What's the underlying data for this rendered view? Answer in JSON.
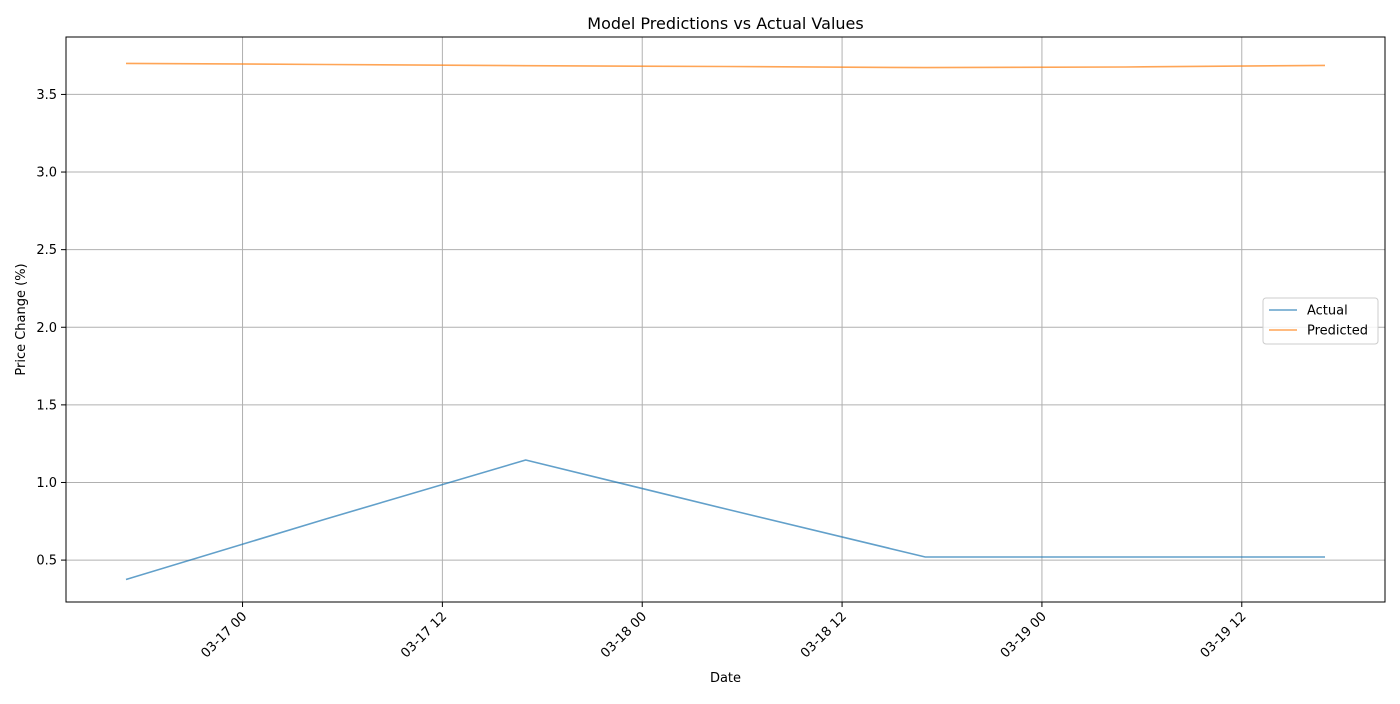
{
  "chart_data": {
    "type": "line",
    "title": "Model Predictions vs Actual Values",
    "xlabel": "Date",
    "ylabel": "Price Change (%)",
    "grid": true,
    "legend_position": "center-right",
    "x": [
      "2026-03-16 17:00",
      "2026-03-17 05:00",
      "2026-03-17 17:00",
      "2026-03-18 05:00",
      "2026-03-18 17:00",
      "2026-03-19 05:00",
      "2026-03-19 17:00"
    ],
    "x_ticks": [
      {
        "value": "2026-03-17 00:00",
        "label": "03-17 00"
      },
      {
        "value": "2026-03-17 12:00",
        "label": "03-17 12"
      },
      {
        "value": "2026-03-18 00:00",
        "label": "03-18 00"
      },
      {
        "value": "2026-03-18 12:00",
        "label": "03-18 12"
      },
      {
        "value": "2026-03-19 00:00",
        "label": "03-19 00"
      },
      {
        "value": "2026-03-19 12:00",
        "label": "03-19 12"
      }
    ],
    "xlim": [
      "2026-03-16 13:24",
      "2026-03-19 20:36"
    ],
    "y_ticks": [
      0.5,
      1.0,
      1.5,
      2.0,
      2.5,
      3.0,
      3.5
    ],
    "ylim": [
      0.23,
      3.87
    ],
    "series": [
      {
        "name": "Actual",
        "color": "#1f77b4",
        "values": [
          0.375,
          0.765,
          1.145,
          0.83,
          0.52,
          0.52,
          0.52
        ]
      },
      {
        "name": "Predicted",
        "color": "#ff7f0e",
        "values": [
          3.7,
          3.693,
          3.685,
          3.68,
          3.673,
          3.677,
          3.687
        ]
      }
    ]
  }
}
